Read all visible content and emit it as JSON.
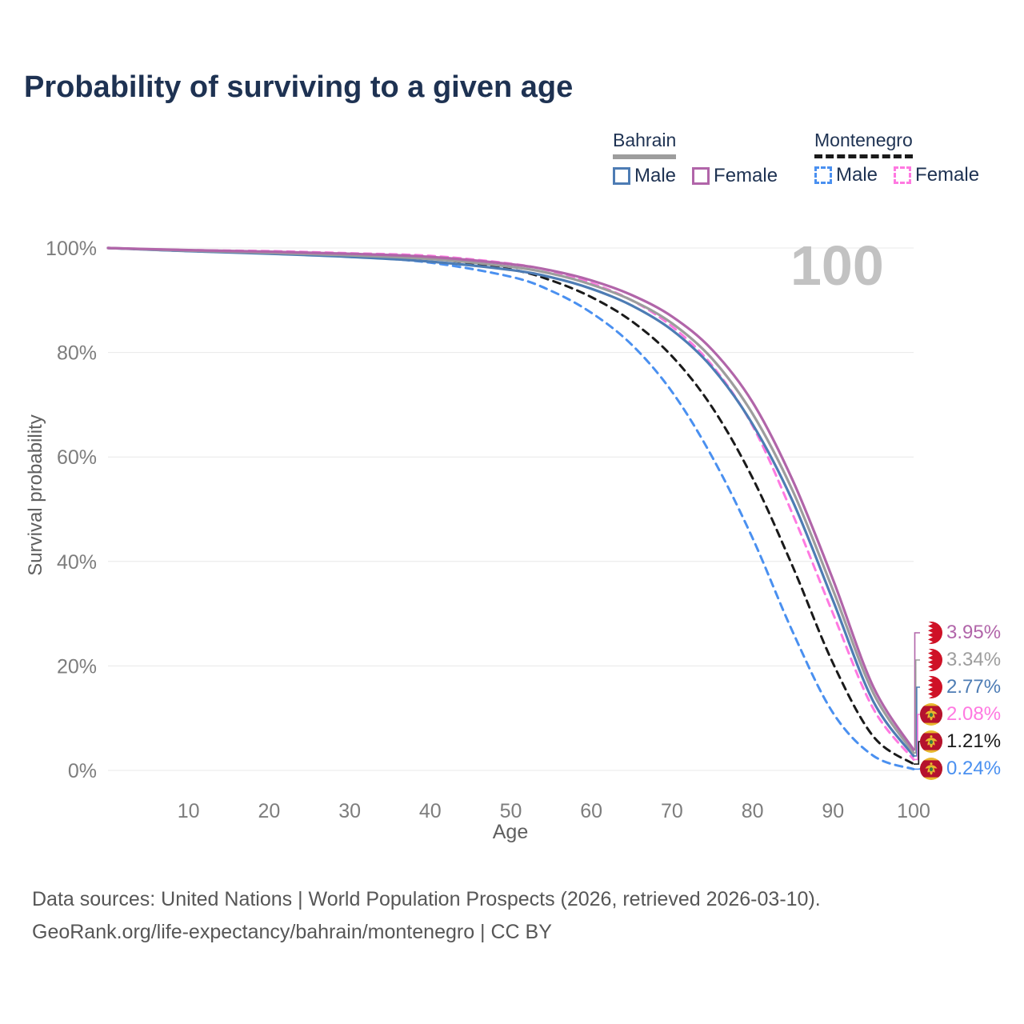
{
  "header": {
    "title": "Probability of surviving to a given age"
  },
  "legend": {
    "groups": [
      {
        "name": "Bahrain",
        "style_series": "bahrain_all",
        "items": [
          "Male",
          "Female"
        ],
        "item_series": [
          "bahrain_male",
          "bahrain_female"
        ]
      },
      {
        "name": "Montenegro",
        "style_series": "montenegro_all",
        "items": [
          "Male",
          "Female"
        ],
        "item_series": [
          "montenegro_male",
          "montenegro_female"
        ]
      }
    ]
  },
  "chart_data": {
    "type": "line",
    "title": "Probability of surviving to a given age",
    "xlabel": "Age",
    "ylabel": "Survival probability",
    "xlim": [
      0,
      100
    ],
    "ylim": [
      0,
      100
    ],
    "grid": "horizontal-only",
    "legend_position": "top-right",
    "age_counter": "100",
    "x_ticks": [
      {
        "v": 10,
        "label": "10"
      },
      {
        "v": 20,
        "label": "20"
      },
      {
        "v": 30,
        "label": "30"
      },
      {
        "v": 40,
        "label": "40"
      },
      {
        "v": 50,
        "label": "50"
      },
      {
        "v": 60,
        "label": "60"
      },
      {
        "v": 70,
        "label": "70"
      },
      {
        "v": 80,
        "label": "80"
      },
      {
        "v": 90,
        "label": "90"
      },
      {
        "v": 100,
        "label": "100"
      }
    ],
    "y_ticks": [
      {
        "v": 0,
        "label": "0%"
      },
      {
        "v": 20,
        "label": "20%"
      },
      {
        "v": 40,
        "label": "40%"
      },
      {
        "v": 60,
        "label": "60%"
      },
      {
        "v": 80,
        "label": "80%"
      },
      {
        "v": 100,
        "label": "100%"
      }
    ],
    "ages": [
      0,
      10,
      20,
      30,
      40,
      50,
      55,
      60,
      65,
      70,
      75,
      80,
      85,
      90,
      95,
      100
    ],
    "series": [
      {
        "id": "montenegro_male",
        "name": "Montenegro Male",
        "country": "Montenegro",
        "sex": "Male",
        "color": "#4a90f0",
        "dash": true,
        "values": [
          100,
          99.4,
          99.0,
          98.4,
          97.2,
          94.5,
          91.8,
          87.6,
          81.5,
          72.5,
          60.0,
          44.5,
          26.5,
          11.0,
          2.8,
          0.24
        ]
      },
      {
        "id": "montenegro_all",
        "name": "Montenegro",
        "country": "Montenegro",
        "sex": "Both",
        "color": "#1a1a1a",
        "dash": true,
        "values": [
          100,
          99.5,
          99.2,
          98.7,
          98.0,
          95.9,
          93.8,
          90.6,
          86.0,
          79.3,
          69.5,
          56.0,
          39.0,
          20.5,
          6.5,
          1.21
        ]
      },
      {
        "id": "montenegro_female",
        "name": "Montenegro Female",
        "country": "Montenegro",
        "sex": "Female",
        "color": "#ff79e1",
        "dash": true,
        "values": [
          100,
          99.6,
          99.4,
          99.0,
          98.5,
          97.0,
          95.6,
          93.3,
          90.0,
          85.0,
          77.5,
          66.0,
          49.0,
          30.0,
          11.8,
          2.08
        ]
      },
      {
        "id": "bahrain_male",
        "name": "Bahrain Male",
        "country": "Bahrain",
        "sex": "Male",
        "color": "#4d7cb4",
        "dash": false,
        "values": [
          100,
          99.4,
          98.9,
          98.3,
          97.4,
          95.8,
          94.4,
          92.2,
          89.0,
          84.3,
          77.1,
          66.3,
          51.5,
          32.5,
          13.2,
          2.77
        ]
      },
      {
        "id": "bahrain_all",
        "name": "Bahrain",
        "country": "Bahrain",
        "sex": "Both",
        "color": "#9d9d9d",
        "dash": false,
        "values": [
          100,
          99.5,
          99.1,
          98.6,
          97.9,
          96.4,
          95.1,
          93.0,
          90.0,
          85.6,
          78.8,
          68.3,
          53.5,
          34.5,
          14.8,
          3.34
        ]
      },
      {
        "id": "bahrain_female",
        "name": "Bahrain Female",
        "country": "Bahrain",
        "sex": "Female",
        "color": "#b165a9",
        "dash": false,
        "values": [
          100,
          99.6,
          99.3,
          98.9,
          98.3,
          96.9,
          95.7,
          93.8,
          91.0,
          86.9,
          80.5,
          70.5,
          55.5,
          36.5,
          16.0,
          3.95
        ]
      }
    ],
    "end_labels": [
      {
        "series": "bahrain_female",
        "flag": "bahrain",
        "value": 3.95,
        "text": "3.95%",
        "color": "#b165a9"
      },
      {
        "series": "bahrain_all",
        "flag": "bahrain",
        "value": 3.34,
        "text": "3.34%",
        "color": "#9d9d9d"
      },
      {
        "series": "bahrain_male",
        "flag": "bahrain",
        "value": 2.77,
        "text": "2.77%",
        "color": "#4d7cb4"
      },
      {
        "series": "montenegro_female",
        "flag": "montenegro",
        "value": 2.08,
        "text": "2.08%",
        "color": "#ff79e1"
      },
      {
        "series": "montenegro_all",
        "flag": "montenegro",
        "value": 1.21,
        "text": "1.21%",
        "color": "#1a1a1a"
      },
      {
        "series": "montenegro_male",
        "flag": "montenegro",
        "value": 0.24,
        "text": "0.24%",
        "color": "#4a90f0"
      }
    ]
  },
  "footer": {
    "line1": "Data sources: United Nations | World Population Prospects (2026, retrieved 2026-03-10).",
    "line2": "GeoRank.org/life-expectancy/bahrain/montenegro | CC BY"
  }
}
